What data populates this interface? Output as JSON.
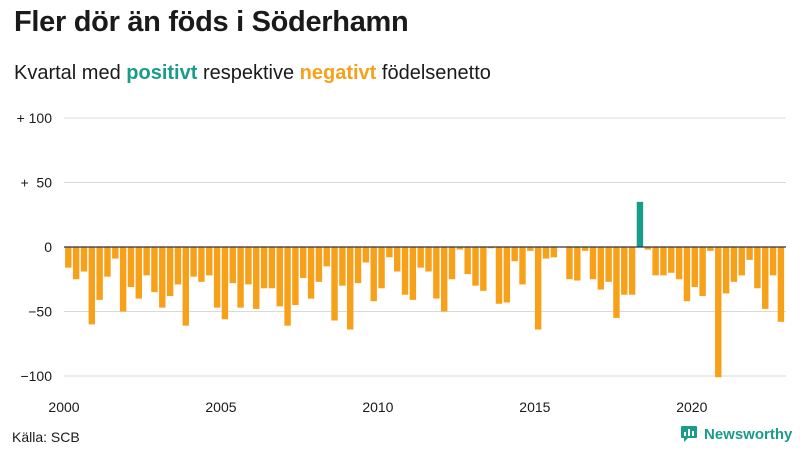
{
  "title": "Fler dör än föds i Söderhamn",
  "subtitle": {
    "prefix": "Kvartal med ",
    "positive": "positivt",
    "middle": " respektive ",
    "negative": "negativt",
    "suffix": " födelsenetto"
  },
  "source": "Källa: SCB",
  "brand": {
    "name": "Newsworthy",
    "icon": "newsworthy-chart-bubble-icon"
  },
  "colors": {
    "positive": "#1a9c8a",
    "negative": "#f7a11a",
    "grid": "#d9d9d9",
    "zero_line": "#333333"
  },
  "chart_data": {
    "type": "bar",
    "title": "Fler dör än föds i Söderhamn",
    "xlabel": "",
    "ylabel": "",
    "ylim": [
      -100,
      100
    ],
    "xlim": [
      2000,
      2023
    ],
    "grid": true,
    "y_ticks": [
      {
        "value": 100,
        "label": "+ 100"
      },
      {
        "value": 50,
        "label": "+  50"
      },
      {
        "value": 0,
        "label": "0"
      },
      {
        "value": -50,
        "label": "−50"
      },
      {
        "value": -100,
        "label": "−100"
      }
    ],
    "x_ticks": [
      {
        "value": 2000,
        "label": "2000"
      },
      {
        "value": 2005,
        "label": "2005"
      },
      {
        "value": 2010,
        "label": "2010"
      },
      {
        "value": 2015,
        "label": "2015"
      },
      {
        "value": 2020,
        "label": "2020"
      }
    ],
    "series": [
      {
        "categories": [
          "2000-Q1",
          "2000-Q2",
          "2000-Q3",
          "2000-Q4",
          "2001-Q1",
          "2001-Q2",
          "2001-Q3",
          "2001-Q4",
          "2002-Q1",
          "2002-Q2",
          "2002-Q3",
          "2002-Q4",
          "2003-Q1",
          "2003-Q2",
          "2003-Q3",
          "2003-Q4",
          "2004-Q1",
          "2004-Q2",
          "2004-Q3",
          "2004-Q4",
          "2005-Q1",
          "2005-Q2",
          "2005-Q3",
          "2005-Q4",
          "2006-Q1",
          "2006-Q2",
          "2006-Q3",
          "2006-Q4",
          "2007-Q1",
          "2007-Q2",
          "2007-Q3",
          "2007-Q4",
          "2008-Q1",
          "2008-Q2",
          "2008-Q3",
          "2008-Q4",
          "2009-Q1",
          "2009-Q2",
          "2009-Q3",
          "2009-Q4",
          "2010-Q1",
          "2010-Q2",
          "2010-Q3",
          "2010-Q4",
          "2011-Q1",
          "2011-Q2",
          "2011-Q3",
          "2011-Q4",
          "2012-Q1",
          "2012-Q2",
          "2012-Q3",
          "2012-Q4",
          "2013-Q1",
          "2013-Q2",
          "2013-Q3",
          "2013-Q4",
          "2014-Q1",
          "2014-Q2",
          "2014-Q3",
          "2014-Q4",
          "2015-Q1",
          "2015-Q2",
          "2015-Q3",
          "2015-Q4",
          "2016-Q1",
          "2016-Q2",
          "2016-Q3",
          "2016-Q4",
          "2017-Q1",
          "2017-Q2",
          "2017-Q3",
          "2017-Q4",
          "2018-Q1",
          "2018-Q2",
          "2018-Q3",
          "2018-Q4",
          "2019-Q1",
          "2019-Q2",
          "2019-Q3",
          "2019-Q4",
          "2020-Q1",
          "2020-Q2",
          "2020-Q3",
          "2020-Q4",
          "2021-Q1",
          "2021-Q2",
          "2021-Q3",
          "2021-Q4",
          "2022-Q1",
          "2022-Q2",
          "2022-Q3",
          "2022-Q4"
        ],
        "values": [
          -16,
          -25,
          -19,
          -60,
          -41,
          -23,
          -9,
          -50,
          -31,
          -40,
          -22,
          -35,
          -47,
          -38,
          -29,
          -61,
          -23,
          -27,
          -22,
          -47,
          -56,
          -28,
          -47,
          -29,
          -48,
          -32,
          -32,
          -46,
          -61,
          -45,
          -24,
          -40,
          -27,
          -15,
          -57,
          -30,
          -64,
          -28,
          -12,
          -42,
          -32,
          -8,
          -19,
          -37,
          -41,
          -16,
          -19,
          -40,
          -50,
          -25,
          -2,
          -21,
          -30,
          -34,
          -1,
          -44,
          -43,
          -11,
          -29,
          -3,
          -64,
          -9,
          -8,
          0,
          -25,
          -26,
          -3,
          -25,
          -33,
          -27,
          -55,
          -37,
          -37,
          35,
          -2,
          -22,
          -22,
          -20,
          -25,
          -42,
          -31,
          -38,
          -3,
          -101,
          -36,
          -27,
          -22,
          -10,
          -32,
          -48,
          -22,
          -58
        ]
      }
    ]
  }
}
